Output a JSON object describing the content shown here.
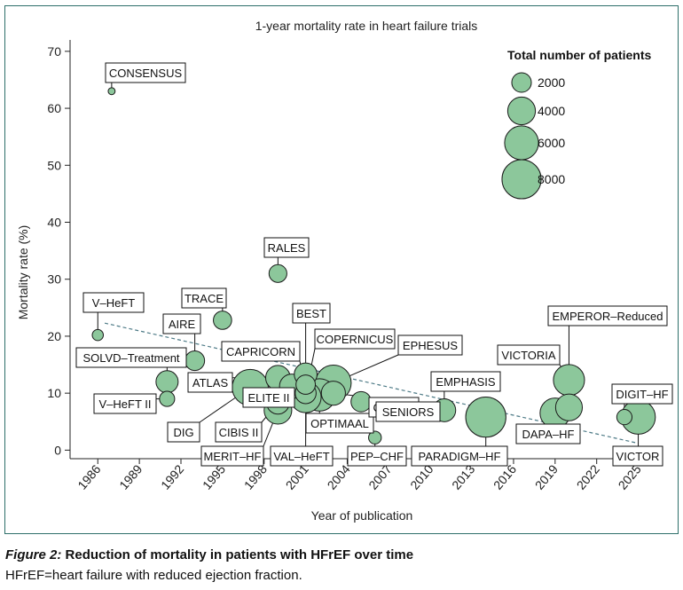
{
  "caption": {
    "figure_label": "Figure 2:",
    "title": "Reduction of mortality in patients with HFrEF over time",
    "footnote": "HFrEF=heart failure with reduced ejection fraction."
  },
  "colors": {
    "frame": "#2e6f6a",
    "bubble_fill": "#8cc79b",
    "bubble_stroke": "#1a1a1a",
    "trend_line": "#4d7a86"
  },
  "chart_data": {
    "type": "scatter",
    "title": "1-year mortality rate in heart failure trials",
    "xlabel": "Year of publication",
    "ylabel": "Mortality rate (%)",
    "xlim": [
      1984,
      2026.5
    ],
    "ylim": [
      -1.5,
      72
    ],
    "x_ticks": [
      "1986",
      "1989",
      "1992",
      "1995",
      "1998",
      "2001",
      "2004",
      "2007",
      "2010",
      "2013",
      "2016",
      "2019",
      "2022",
      "2025"
    ],
    "y_ticks": [
      "0",
      "10",
      "20",
      "30",
      "40",
      "50",
      "60",
      "70"
    ],
    "grid": false,
    "legend": {
      "title": "Total number of patients",
      "position": "top-right",
      "entries": [
        {
          "label": "2000",
          "patients": 2000
        },
        {
          "label": "4000",
          "patients": 4000
        },
        {
          "label": "6000",
          "patients": 6000
        },
        {
          "label": "8000",
          "patients": 8000
        }
      ]
    },
    "trend_line": {
      "x": [
        1986.5,
        2025
      ],
      "y": [
        22.3,
        1.2
      ],
      "style": "dashed"
    },
    "trials": [
      {
        "label": "CONSENSUS",
        "year": 1987,
        "mortality": 63,
        "patients": 253
      },
      {
        "label": "V–HeFT",
        "year": 1986,
        "mortality": 20.2,
        "patients": 642
      },
      {
        "label": "SOLVD–Treatment",
        "year": 1991,
        "mortality": 12,
        "patients": 2569
      },
      {
        "label": "V–HeFT II",
        "year": 1991,
        "mortality": 9,
        "patients": 1200
      },
      {
        "label": "AIRE",
        "year": 1993,
        "mortality": 15.7,
        "patients": 2006
      },
      {
        "label": "TRACE",
        "year": 1995,
        "mortality": 22.8,
        "patients": 1749
      },
      {
        "label": "DIG",
        "year": 1997,
        "mortality": 11,
        "patients": 6800
      },
      {
        "label": "ATLAS",
        "year": 1999,
        "mortality": 12.7,
        "patients": 3164
      },
      {
        "label": "ELITE II",
        "year": 2000,
        "mortality": 11.2,
        "patients": 3152
      },
      {
        "label": "CIBIS II",
        "year": 1999,
        "mortality": 8.3,
        "patients": 2647
      },
      {
        "label": "MERIT–HF",
        "year": 1999,
        "mortality": 7,
        "patients": 3991
      },
      {
        "label": "RALES",
        "year": 1999,
        "mortality": 31,
        "patients": 1663
      },
      {
        "label": "BEST",
        "year": 2001,
        "mortality": 13.3,
        "patients": 2708
      },
      {
        "label": "CAPRICORN",
        "year": 2001,
        "mortality": 11.5,
        "patients": 1959
      },
      {
        "label": "VAL–HeFT",
        "year": 2001,
        "mortality": 9.3,
        "patients": 5010
      },
      {
        "label": "COPERNICUS",
        "year": 2001,
        "mortality": 10,
        "patients": 2289
      },
      {
        "label": "OPTIMAAL",
        "year": 2002,
        "mortality": 9.7,
        "patients": 5477
      },
      {
        "label": "EPHESUS",
        "year": 2003,
        "mortality": 11.8,
        "patients": 6632
      },
      {
        "label": "COMET",
        "year": 2003,
        "mortality": 10,
        "patients": 3029
      },
      {
        "label": "SENIORS",
        "year": 2005,
        "mortality": 8.5,
        "patients": 2128
      },
      {
        "label": "PEP–CHF",
        "year": 2006,
        "mortality": 2.2,
        "patients": 850
      },
      {
        "label": "EMPHASIS",
        "year": 2011,
        "mortality": 7,
        "patients": 2737
      },
      {
        "label": "PARADIGM–HF",
        "year": 2014,
        "mortality": 5.8,
        "patients": 8442
      },
      {
        "label": "VICTORIA",
        "year": 2020,
        "mortality": 12.3,
        "patients": 5050
      },
      {
        "label": "DAPA–HF",
        "year": 2019,
        "mortality": 6.5,
        "patients": 4744
      },
      {
        "label": "EMPEROR–Reduced",
        "year": 2020,
        "mortality": 7.5,
        "patients": 3730
      },
      {
        "label": "DIGIT–HF",
        "year": 2024,
        "mortality": 5.8,
        "patients": 1212
      },
      {
        "label": "VICTOR",
        "year": 2025,
        "mortality": 5.8,
        "patients": 6105
      }
    ]
  }
}
